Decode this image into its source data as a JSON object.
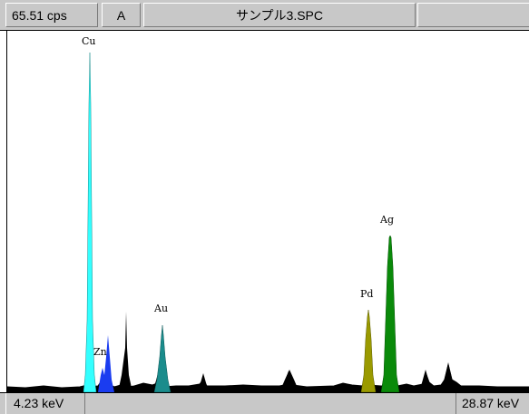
{
  "header": {
    "count_rate": "65.51 cps",
    "channel": "A",
    "filename": "サンプル3.SPC"
  },
  "footer": {
    "min_energy": "4.23 keV",
    "max_energy": "28.87 keV"
  },
  "colors": {
    "Cu": "#33ffff",
    "Zn": "#1a3cf0",
    "Au": "#1a8c8c",
    "Pd": "#9a9a00",
    "Ag": "#0a8a0a",
    "background_spectrum": "#000000"
  },
  "chart_data": {
    "type": "area",
    "xlim": [
      4.23,
      28.87
    ],
    "xunit": "keV",
    "labels": [
      "Cu",
      "Zn",
      "Au",
      "Pd",
      "Ag"
    ],
    "peaks": [
      {
        "element": "Cu",
        "energy": 8.04,
        "height": 1.0
      },
      {
        "element": "Zn",
        "energy": 9.57,
        "height": 0.16
      },
      {
        "element": "Au",
        "energy": 11.44,
        "height": 0.19
      },
      {
        "element": "Pd",
        "energy": 21.18,
        "height": 0.24
      },
      {
        "element": "Ag",
        "energy": 22.16,
        "height": 0.46
      }
    ]
  }
}
